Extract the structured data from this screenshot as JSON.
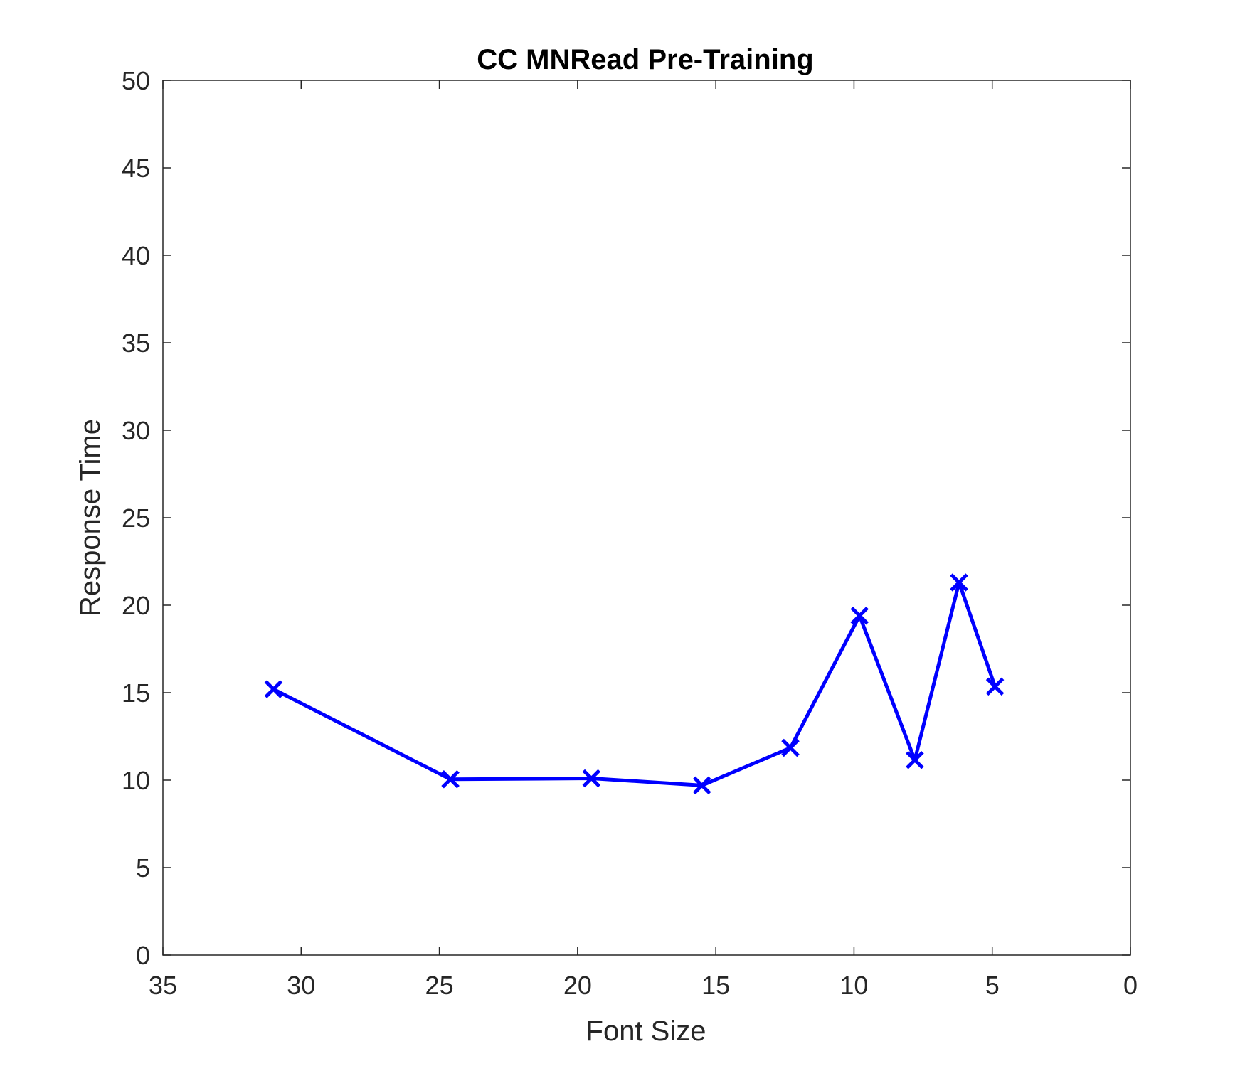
{
  "chart_data": {
    "type": "line",
    "title": "CC MNRead Pre-Training",
    "xlabel": "Font Size",
    "ylabel": "Response Time",
    "xlim": [
      35,
      0
    ],
    "x_reversed": true,
    "ylim": [
      0,
      50
    ],
    "xticks": [
      35,
      30,
      25,
      20,
      15,
      10,
      5,
      0
    ],
    "yticks": [
      0,
      5,
      10,
      15,
      20,
      25,
      30,
      35,
      40,
      45,
      50
    ],
    "grid": false,
    "line_color": "#0000ff",
    "marker": "x",
    "series": [
      {
        "x": [
          31.0,
          24.6,
          19.5,
          15.5,
          12.3,
          9.8,
          7.8,
          6.2,
          4.9
        ],
        "y": [
          15.2,
          10.05,
          10.1,
          9.7,
          11.85,
          19.4,
          11.15,
          21.3,
          15.35
        ]
      }
    ]
  }
}
